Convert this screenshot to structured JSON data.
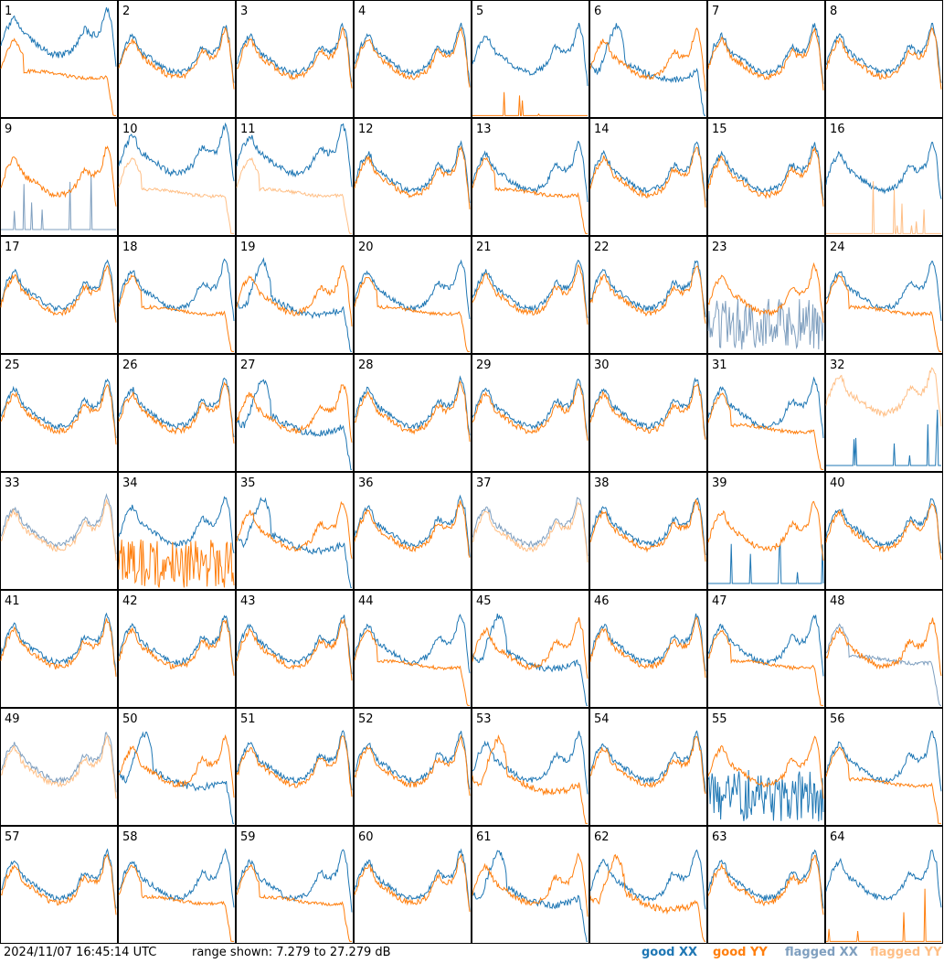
{
  "footer": {
    "timestamp": "2024/11/07 16:45:14 UTC",
    "range_text": "range shown: 7.279 to 27.279 dB"
  },
  "legend": [
    {
      "label": "good XX",
      "color": "#1f77b4"
    },
    {
      "label": "good YY",
      "color": "#ff7f0e"
    },
    {
      "label": "flagged XX",
      "color": "#7f9fbf"
    },
    {
      "label": "flagged YY",
      "color": "#ffbf86"
    }
  ],
  "chart_data": {
    "type": "line",
    "title": "",
    "panel_count": 64,
    "grid": "8x8",
    "ylim": [
      7.279,
      27.279
    ],
    "units": "dB",
    "panels": [
      {
        "label": "1",
        "xx": "good",
        "yy": "good",
        "shape_xx": "high",
        "shape_yy": "sag"
      },
      {
        "label": "2",
        "xx": "good",
        "yy": "good",
        "shape_xx": "typical",
        "shape_yy": "typical"
      },
      {
        "label": "3",
        "xx": "good",
        "yy": "good",
        "shape_xx": "typical",
        "shape_yy": "typical"
      },
      {
        "label": "4",
        "xx": "good",
        "yy": "good",
        "shape_xx": "typical",
        "shape_yy": "typical"
      },
      {
        "label": "5",
        "xx": "good",
        "yy": "good",
        "shape_xx": "typical",
        "shape_yy": "spike"
      },
      {
        "label": "6",
        "xx": "good",
        "yy": "good",
        "shape_xx": "dip",
        "shape_yy": "typical"
      },
      {
        "label": "7",
        "xx": "good",
        "yy": "good",
        "shape_xx": "typical",
        "shape_yy": "typical"
      },
      {
        "label": "8",
        "xx": "good",
        "yy": "good",
        "shape_xx": "typical",
        "shape_yy": "typical"
      },
      {
        "label": "9",
        "xx": "flagged",
        "yy": "good",
        "shape_xx": "spike",
        "shape_yy": "typical"
      },
      {
        "label": "10",
        "xx": "good",
        "yy": "flagged",
        "shape_xx": "high",
        "shape_yy": "sag"
      },
      {
        "label": "11",
        "xx": "good",
        "yy": "flagged",
        "shape_xx": "high",
        "shape_yy": "sag"
      },
      {
        "label": "12",
        "xx": "good",
        "yy": "good",
        "shape_xx": "typical",
        "shape_yy": "typical"
      },
      {
        "label": "13",
        "xx": "good",
        "yy": "good",
        "shape_xx": "typical",
        "shape_yy": "sag"
      },
      {
        "label": "14",
        "xx": "good",
        "yy": "good",
        "shape_xx": "typical",
        "shape_yy": "typical"
      },
      {
        "label": "15",
        "xx": "good",
        "yy": "good",
        "shape_xx": "typical",
        "shape_yy": "typical"
      },
      {
        "label": "16",
        "xx": "good",
        "yy": "flagged",
        "shape_xx": "typical",
        "shape_yy": "spike"
      },
      {
        "label": "17",
        "xx": "good",
        "yy": "good",
        "shape_xx": "typical",
        "shape_yy": "typical"
      },
      {
        "label": "18",
        "xx": "good",
        "yy": "good",
        "shape_xx": "typical",
        "shape_yy": "sag"
      },
      {
        "label": "19",
        "xx": "good",
        "yy": "good",
        "shape_xx": "dip",
        "shape_yy": "typical"
      },
      {
        "label": "20",
        "xx": "good",
        "yy": "good",
        "shape_xx": "typical",
        "shape_yy": "sag"
      },
      {
        "label": "21",
        "xx": "good",
        "yy": "good",
        "shape_xx": "typical",
        "shape_yy": "typical"
      },
      {
        "label": "22",
        "xx": "good",
        "yy": "good",
        "shape_xx": "typical",
        "shape_yy": "typical"
      },
      {
        "label": "23",
        "xx": "flagged",
        "yy": "good",
        "shape_xx": "noisy",
        "shape_yy": "typical"
      },
      {
        "label": "24",
        "xx": "good",
        "yy": "good",
        "shape_xx": "typical",
        "shape_yy": "sag"
      },
      {
        "label": "25",
        "xx": "good",
        "yy": "good",
        "shape_xx": "typical",
        "shape_yy": "typical"
      },
      {
        "label": "26",
        "xx": "good",
        "yy": "good",
        "shape_xx": "typical",
        "shape_yy": "typical"
      },
      {
        "label": "27",
        "xx": "good",
        "yy": "good",
        "shape_xx": "dip",
        "shape_yy": "typical"
      },
      {
        "label": "28",
        "xx": "good",
        "yy": "good",
        "shape_xx": "typical",
        "shape_yy": "typical"
      },
      {
        "label": "29",
        "xx": "good",
        "yy": "good",
        "shape_xx": "typical",
        "shape_yy": "typical"
      },
      {
        "label": "30",
        "xx": "good",
        "yy": "good",
        "shape_xx": "typical",
        "shape_yy": "typical"
      },
      {
        "label": "31",
        "xx": "good",
        "yy": "good",
        "shape_xx": "typical",
        "shape_yy": "sag"
      },
      {
        "label": "32",
        "xx": "good",
        "yy": "flagged",
        "shape_xx": "spike",
        "shape_yy": "high"
      },
      {
        "label": "33",
        "xx": "flagged",
        "yy": "flagged",
        "shape_xx": "typical",
        "shape_yy": "typical"
      },
      {
        "label": "34",
        "xx": "good",
        "yy": "good",
        "shape_xx": "typical",
        "shape_yy": "noisy"
      },
      {
        "label": "35",
        "xx": "good",
        "yy": "good",
        "shape_xx": "dip",
        "shape_yy": "typical"
      },
      {
        "label": "36",
        "xx": "good",
        "yy": "good",
        "shape_xx": "typical",
        "shape_yy": "typical"
      },
      {
        "label": "37",
        "xx": "flagged",
        "yy": "flagged",
        "shape_xx": "typical",
        "shape_yy": "typical"
      },
      {
        "label": "38",
        "xx": "good",
        "yy": "good",
        "shape_xx": "typical",
        "shape_yy": "typical"
      },
      {
        "label": "39",
        "xx": "good",
        "yy": "good",
        "shape_xx": "spike",
        "shape_yy": "typical"
      },
      {
        "label": "40",
        "xx": "good",
        "yy": "good",
        "shape_xx": "typical",
        "shape_yy": "typical"
      },
      {
        "label": "41",
        "xx": "good",
        "yy": "good",
        "shape_xx": "typical",
        "shape_yy": "typical"
      },
      {
        "label": "42",
        "xx": "good",
        "yy": "good",
        "shape_xx": "typical",
        "shape_yy": "typical"
      },
      {
        "label": "43",
        "xx": "good",
        "yy": "good",
        "shape_xx": "typical",
        "shape_yy": "typical"
      },
      {
        "label": "44",
        "xx": "good",
        "yy": "good",
        "shape_xx": "typical",
        "shape_yy": "sag"
      },
      {
        "label": "45",
        "xx": "good",
        "yy": "good",
        "shape_xx": "dip",
        "shape_yy": "typical"
      },
      {
        "label": "46",
        "xx": "good",
        "yy": "good",
        "shape_xx": "typical",
        "shape_yy": "typical"
      },
      {
        "label": "47",
        "xx": "good",
        "yy": "good",
        "shape_xx": "typical",
        "shape_yy": "sag"
      },
      {
        "label": "48",
        "xx": "flagged",
        "yy": "good",
        "shape_xx": "sag",
        "shape_yy": "typical"
      },
      {
        "label": "49",
        "xx": "flagged",
        "yy": "flagged",
        "shape_xx": "typical",
        "shape_yy": "typical"
      },
      {
        "label": "50",
        "xx": "good",
        "yy": "good",
        "shape_xx": "dip",
        "shape_yy": "typical"
      },
      {
        "label": "51",
        "xx": "good",
        "yy": "good",
        "shape_xx": "typical",
        "shape_yy": "typical"
      },
      {
        "label": "52",
        "xx": "good",
        "yy": "good",
        "shape_xx": "typical",
        "shape_yy": "typical"
      },
      {
        "label": "53",
        "xx": "good",
        "yy": "good",
        "shape_xx": "typical",
        "shape_yy": "dip"
      },
      {
        "label": "54",
        "xx": "good",
        "yy": "good",
        "shape_xx": "typical",
        "shape_yy": "typical"
      },
      {
        "label": "55",
        "xx": "good",
        "yy": "good",
        "shape_xx": "noisy",
        "shape_yy": "typical"
      },
      {
        "label": "56",
        "xx": "good",
        "yy": "good",
        "shape_xx": "typical",
        "shape_yy": "sag"
      },
      {
        "label": "57",
        "xx": "good",
        "yy": "good",
        "shape_xx": "typical",
        "shape_yy": "typical"
      },
      {
        "label": "58",
        "xx": "good",
        "yy": "good",
        "shape_xx": "typical",
        "shape_yy": "sag"
      },
      {
        "label": "59",
        "xx": "good",
        "yy": "good",
        "shape_xx": "typical",
        "shape_yy": "sag"
      },
      {
        "label": "60",
        "xx": "good",
        "yy": "good",
        "shape_xx": "typical",
        "shape_yy": "typical"
      },
      {
        "label": "61",
        "xx": "good",
        "yy": "good",
        "shape_xx": "dip",
        "shape_yy": "typical"
      },
      {
        "label": "62",
        "xx": "good",
        "yy": "good",
        "shape_xx": "typical",
        "shape_yy": "dip"
      },
      {
        "label": "63",
        "xx": "good",
        "yy": "good",
        "shape_xx": "typical",
        "shape_yy": "typical"
      },
      {
        "label": "64",
        "xx": "good",
        "yy": "good",
        "shape_xx": "typical",
        "shape_yy": "spike"
      }
    ]
  }
}
